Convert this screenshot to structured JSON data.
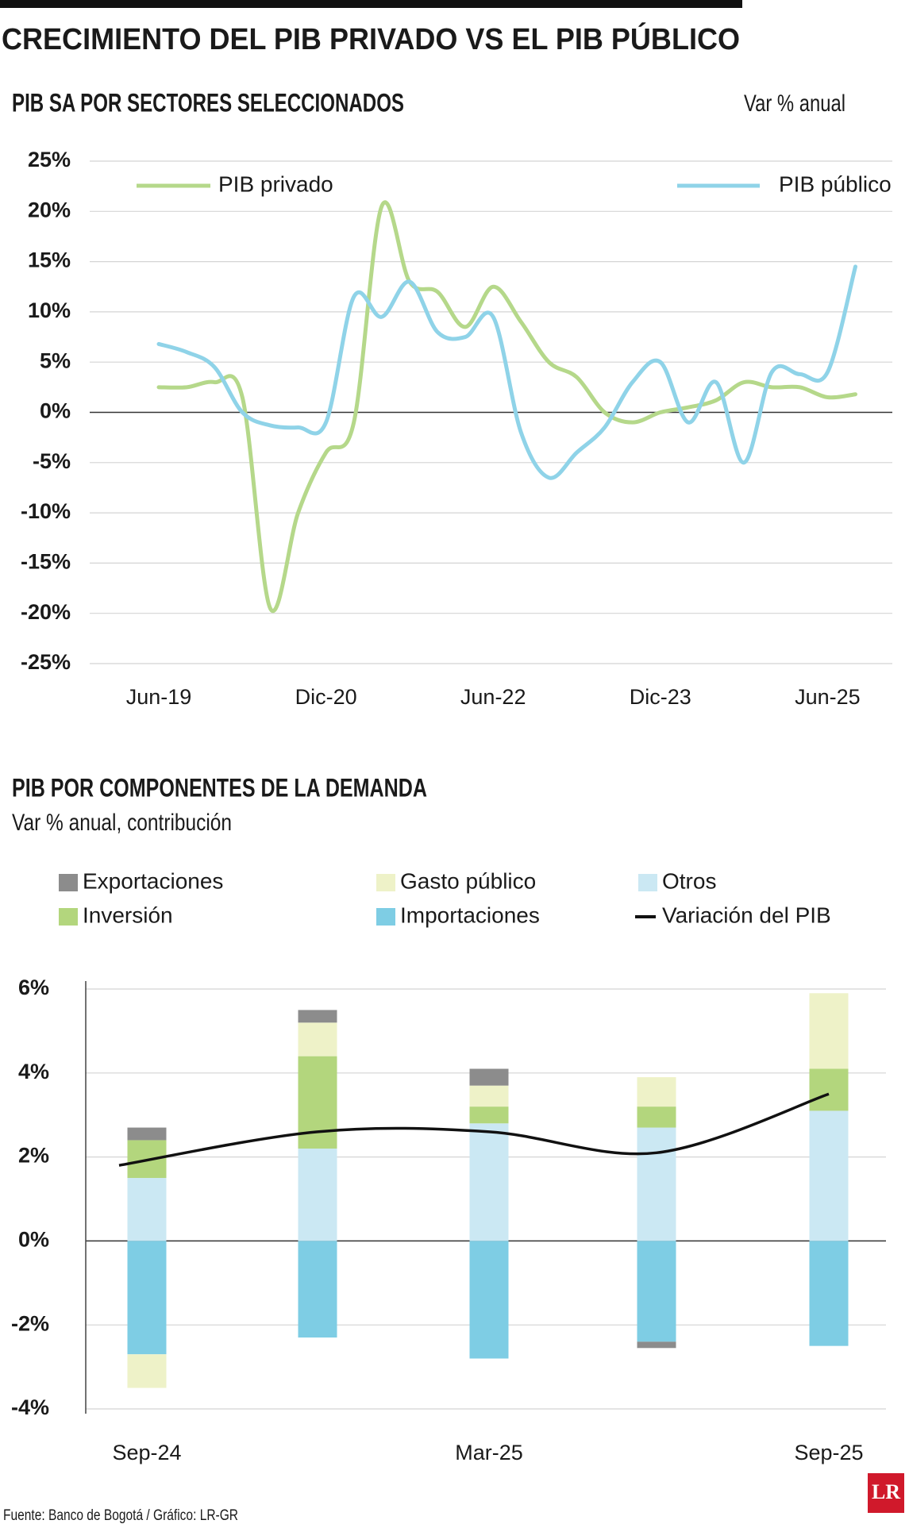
{
  "header": {
    "title": "CRECIMIENTO DEL PIB PRIVADO VS EL PIB PÚBLICO"
  },
  "chart_data": [
    {
      "type": "line",
      "title": "PIB SA POR SECTORES SELECCIONADOS",
      "subtitle": "Var % anual",
      "categories": [
        "Jun-19",
        null,
        null,
        null,
        null,
        null,
        "Dic-20",
        null,
        null,
        null,
        null,
        null,
        "Jun-22",
        null,
        null,
        null,
        null,
        null,
        "Dic-23",
        null,
        null,
        null,
        null,
        null,
        "Jun-25",
        null
      ],
      "series": [
        {
          "name": "PIB privado",
          "color": "#b5d88a",
          "values": [
            2.5,
            2.5,
            3,
            1.5,
            -19.5,
            -10,
            -4,
            -1,
            20.5,
            13,
            12,
            8.5,
            12.5,
            9,
            5,
            3.5,
            0,
            -1,
            0,
            0.5,
            1.2,
            3,
            2.5,
            2.5,
            1.5,
            1.8
          ]
        },
        {
          "name": "PIB público",
          "color": "#8fd3e8",
          "values": [
            6.8,
            6,
            4.5,
            0,
            -1.3,
            -1.5,
            -1,
            11.5,
            9.5,
            13,
            8,
            7.5,
            9.5,
            -2,
            -6.5,
            -4,
            -1.5,
            3,
            5,
            -1,
            3,
            -5,
            4,
            3.8,
            4,
            14.5
          ]
        }
      ],
      "ylim": [
        -25,
        25
      ],
      "yticks": [
        {
          "value": 25,
          "label": "25%"
        },
        {
          "value": 20,
          "label": "20%"
        },
        {
          "value": 15,
          "label": "15%"
        },
        {
          "value": 10,
          "label": "10%"
        },
        {
          "value": 5,
          "label": "5%"
        },
        {
          "value": 0,
          "label": "0%"
        },
        {
          "value": -5,
          "label": "-5%"
        },
        {
          "value": -10,
          "label": "-10%"
        },
        {
          "value": -15,
          "label": "-15%"
        },
        {
          "value": -20,
          "label": "-20%"
        },
        {
          "value": -25,
          "label": "-25%"
        }
      ],
      "grid": true
    },
    {
      "type": "bar",
      "stacked": true,
      "title": "PIB POR COMPONENTES DE LA DEMANDA",
      "subtitle": "Var % anual, contribución",
      "categories": [
        "Sep-24",
        null,
        "Mar-25",
        null,
        "Sep-25"
      ],
      "series": [
        {
          "name": "Otros",
          "color": "#cbe8f3",
          "values": [
            1.5,
            2.2,
            2.8,
            2.7,
            3.1
          ]
        },
        {
          "name": "Importaciones",
          "color": "#7ecde4",
          "values": [
            -2.7,
            -2.3,
            -2.8,
            -2.4,
            -2.5
          ]
        },
        {
          "name": "Inversión",
          "color": "#b3d67d",
          "values": [
            0.9,
            2.2,
            0.4,
            0.5,
            1.0
          ]
        },
        {
          "name": "Gasto público",
          "color": "#eef2c8",
          "values": [
            -0.8,
            0.8,
            0.5,
            0.7,
            1.8
          ]
        },
        {
          "name": "Exportaciones",
          "color": "#8c8c8c",
          "values": [
            0.3,
            0.3,
            0.4,
            -0.15,
            0
          ]
        }
      ],
      "line": {
        "name": "Variación del PIB",
        "color": "#111111",
        "values": [
          1.8,
          2.6,
          2.6,
          2.1,
          3.5
        ]
      },
      "ylim": [
        -4,
        6
      ],
      "yticks": [
        {
          "value": 6,
          "label": "6%"
        },
        {
          "value": 4,
          "label": "4%"
        },
        {
          "value": 2,
          "label": "2%"
        },
        {
          "value": 0,
          "label": "0%"
        },
        {
          "value": -2,
          "label": "-2%"
        },
        {
          "value": -4,
          "label": "-4%"
        }
      ],
      "grid": true
    }
  ],
  "footer": {
    "source": "Fuente: Banco de Bogotá / Gráfico: LR-GR"
  },
  "logo": "LR"
}
